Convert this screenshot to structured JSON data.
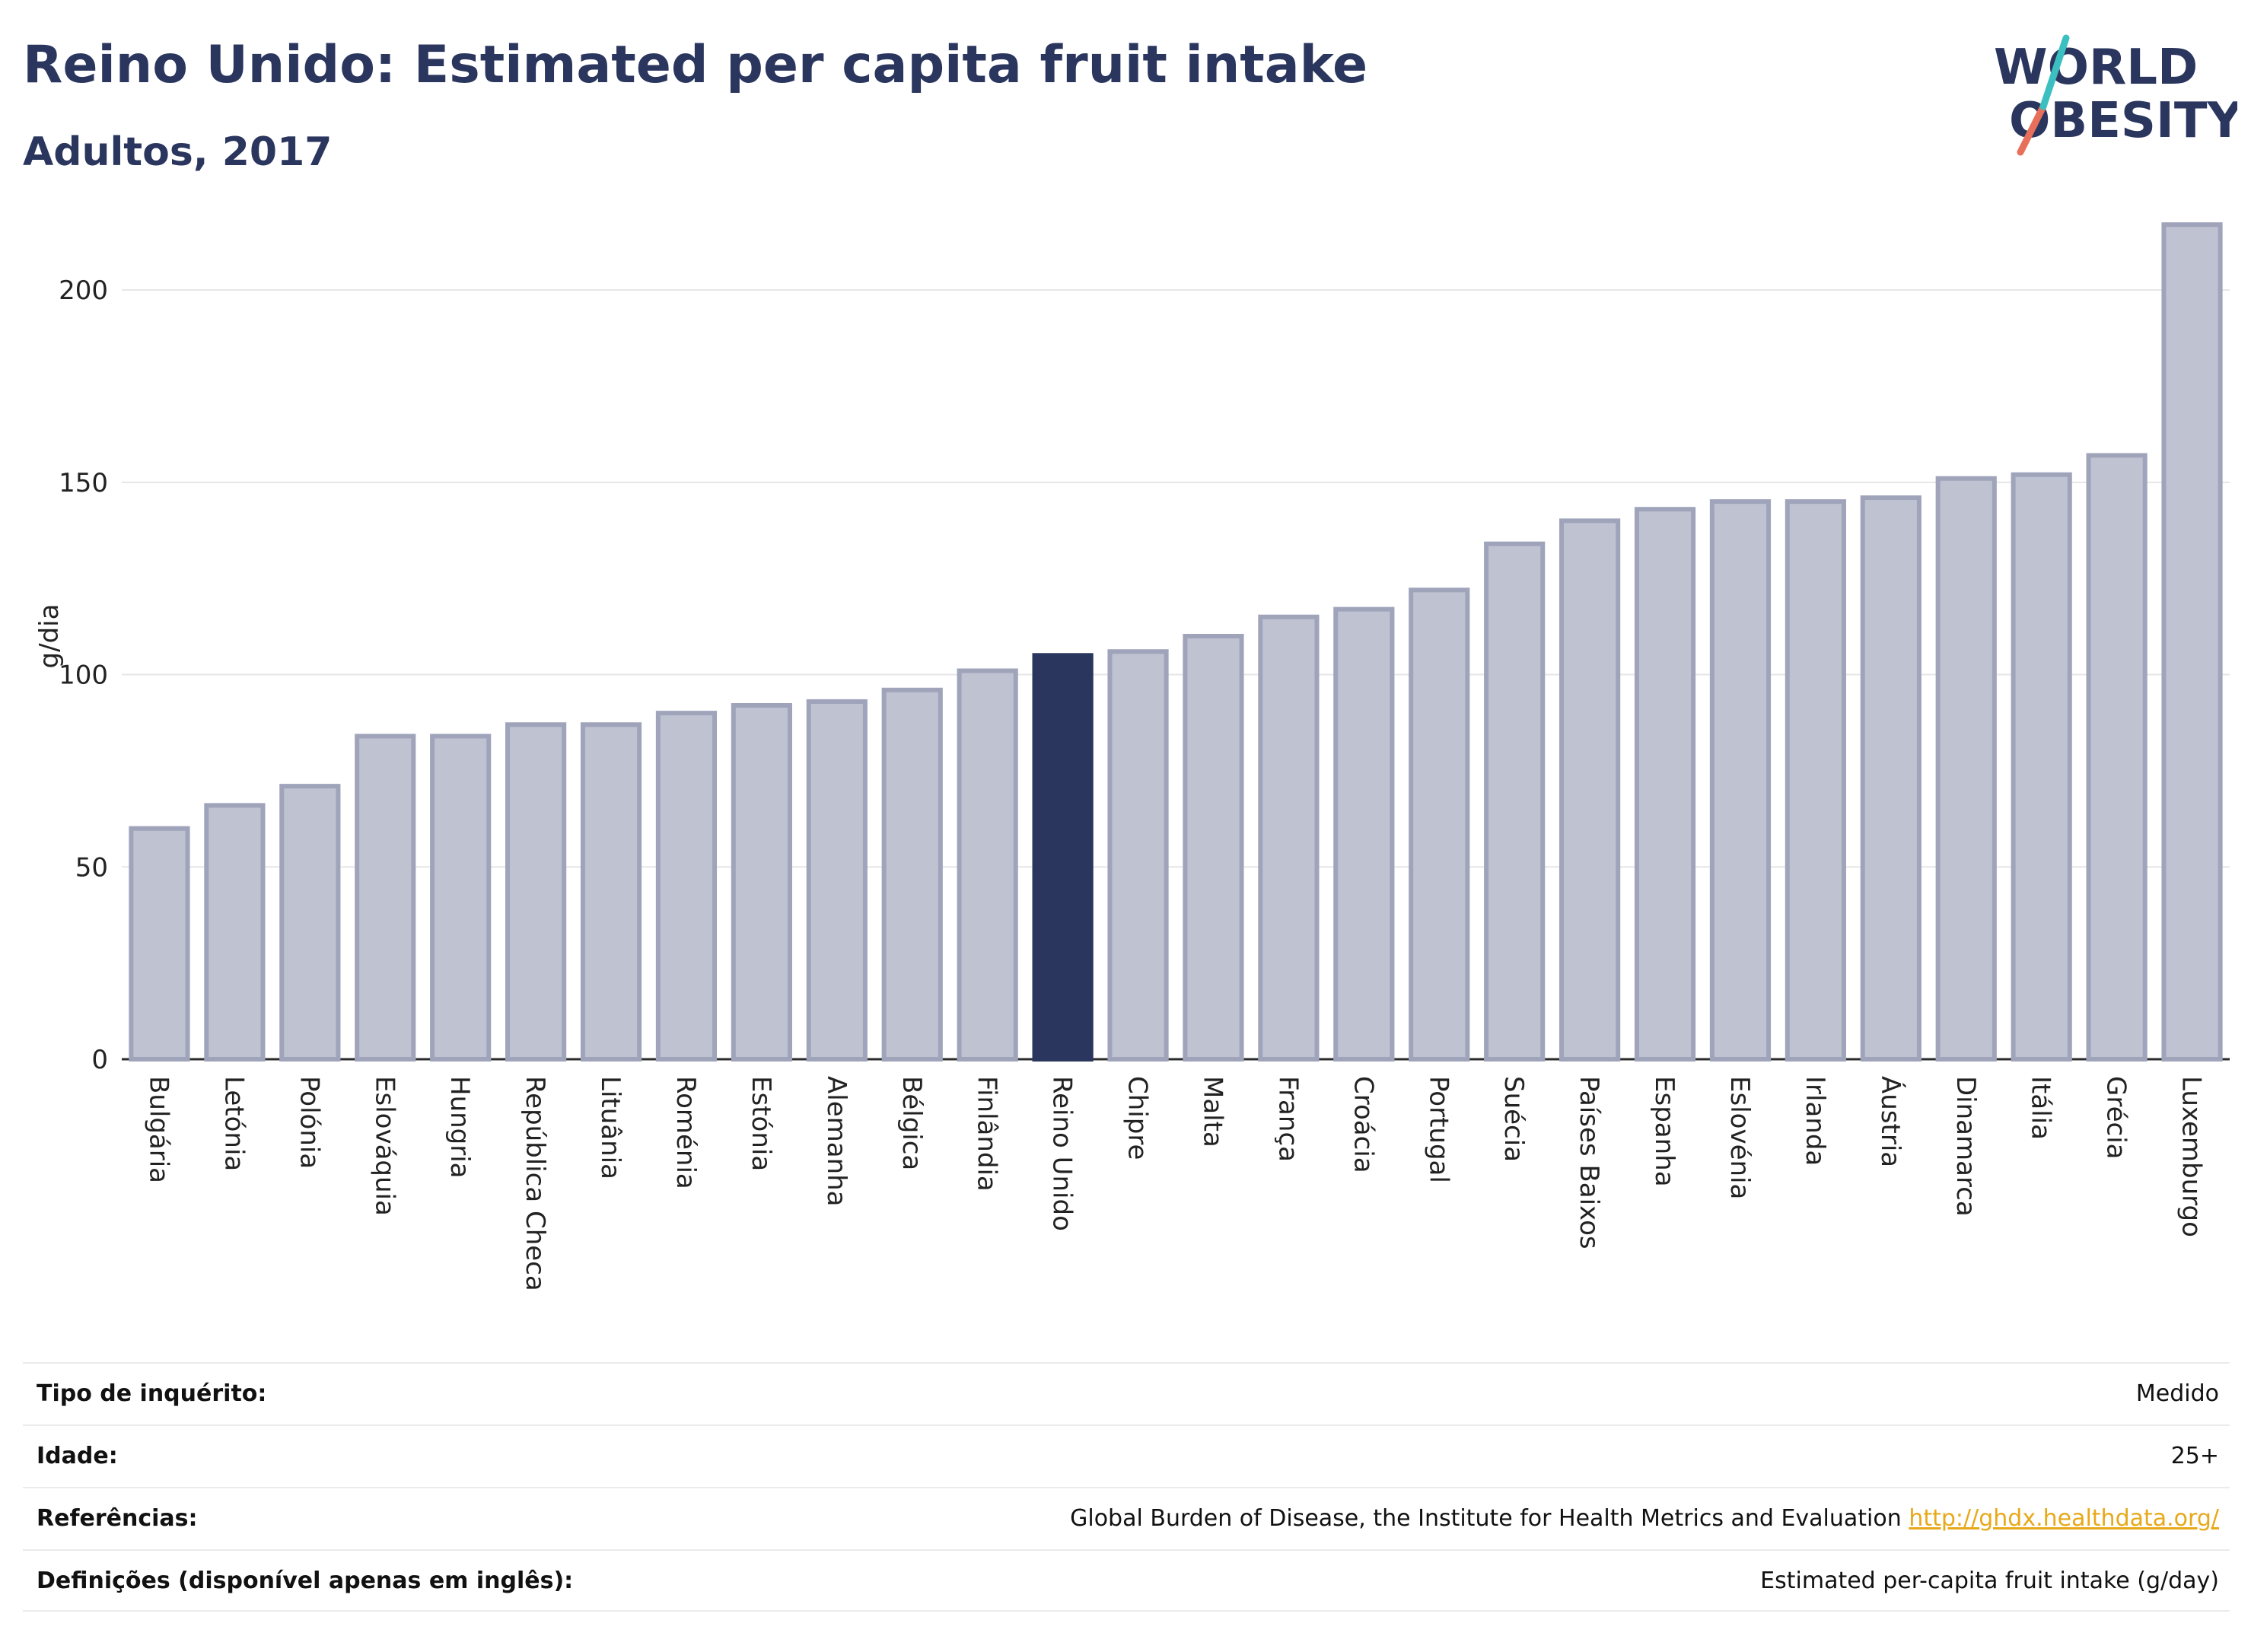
{
  "header": {
    "title": "Reino Unido: Estimated per capita fruit intake",
    "subtitle": "Adultos, 2017"
  },
  "logo": {
    "line1": "WORLD",
    "line2": "OBESITY"
  },
  "colors": {
    "bar": "#bfc2d0",
    "bar_border": "#9fa4bb",
    "highlight": "#2b365e",
    "text": "#2b365e",
    "link": "#e7a91a"
  },
  "chart_data": {
    "type": "bar",
    "ylabel": "g/dia",
    "ylim": [
      0,
      220
    ],
    "yticks": [
      0,
      50,
      100,
      150,
      200
    ],
    "grid": true,
    "highlight": "Reino Unido",
    "categories": [
      "Bulgária",
      "Letónia",
      "Polónia",
      "Eslováquia",
      "Hungria",
      "República Checa",
      "Lituânia",
      "Roménia",
      "Estónia",
      "Alemanha",
      "Bélgica",
      "Finlândia",
      "Reino Unido",
      "Chipre",
      "Malta",
      "França",
      "Croácia",
      "Portugal",
      "Suécia",
      "Países Baixos",
      "Espanha",
      "Eslovénia",
      "Irlanda",
      "Áustria",
      "Dinamarca",
      "Itália",
      "Grécia",
      "Luxemburgo"
    ],
    "values": [
      60,
      66,
      71,
      84,
      84,
      87,
      87,
      90,
      92,
      93,
      96,
      101,
      105,
      106,
      110,
      115,
      117,
      122,
      134,
      140,
      143,
      145,
      145,
      146,
      151,
      152,
      157,
      217
    ]
  },
  "metadata": [
    {
      "label": "Tipo de inquérito:",
      "value": "Medido",
      "link": ""
    },
    {
      "label": "Idade:",
      "value": "25+",
      "link": ""
    },
    {
      "label": "Referências:",
      "value": "Global Burden of Disease, the Institute for Health Metrics and Evaluation",
      "link": "http://ghdx.healthdata.org/"
    },
    {
      "label": "Definições (disponível apenas em inglês):",
      "value": "Estimated per-capita fruit intake (g/day)",
      "link": ""
    }
  ]
}
